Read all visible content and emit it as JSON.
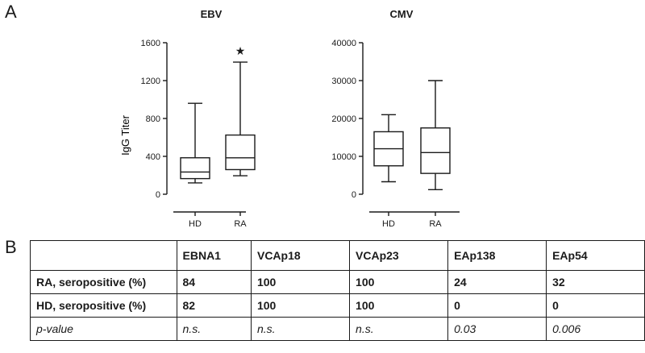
{
  "panels": {
    "a": "A",
    "b": "B"
  },
  "shared": {
    "ylabel": "IgG Titer"
  },
  "chart_data": [
    {
      "type": "boxplot",
      "title": "EBV",
      "xlabel": "",
      "ylabel": "IgG Titer",
      "ylim": [
        0,
        1600
      ],
      "yticks": [
        0,
        400,
        800,
        1200,
        1600
      ],
      "categories": [
        "HD",
        "RA"
      ],
      "boxes": [
        {
          "category": "HD",
          "whisker_low": 120,
          "q1": 165,
          "median": 235,
          "q3": 385,
          "whisker_high": 960
        },
        {
          "category": "RA",
          "whisker_low": 195,
          "q1": 260,
          "median": 385,
          "q3": 625,
          "whisker_high": 1395
        }
      ],
      "annotations": [
        {
          "category": "RA",
          "symbol": "★",
          "y": 1515
        }
      ]
    },
    {
      "type": "boxplot",
      "title": "CMV",
      "xlabel": "",
      "ylabel": "",
      "ylim": [
        0,
        40000
      ],
      "yticks": [
        0,
        10000,
        20000,
        30000,
        40000
      ],
      "categories": [
        "HD",
        "RA"
      ],
      "boxes": [
        {
          "category": "HD",
          "whisker_low": 3300,
          "q1": 7500,
          "median": 12000,
          "q3": 16500,
          "whisker_high": 21000
        },
        {
          "category": "RA",
          "whisker_low": 1200,
          "q1": 5500,
          "median": 11000,
          "q3": 17500,
          "whisker_high": 30000
        }
      ],
      "annotations": []
    }
  ],
  "table": {
    "headers": [
      "",
      "EBNA1",
      "VCAp18",
      "VCAp23",
      "EAp138",
      "EAp54"
    ],
    "rows": [
      {
        "label": "RA, seropositive (%)",
        "values": [
          "84",
          "100",
          "100",
          "24",
          "32"
        ],
        "style": "bold"
      },
      {
        "label": "HD, seropositive (%)",
        "values": [
          "82",
          "100",
          "100",
          "0",
          "0"
        ],
        "style": "bold"
      },
      {
        "label": "p-value",
        "values": [
          "n.s.",
          "n.s.",
          "n.s.",
          "0.03",
          "0.006"
        ],
        "style": "ital"
      }
    ]
  }
}
